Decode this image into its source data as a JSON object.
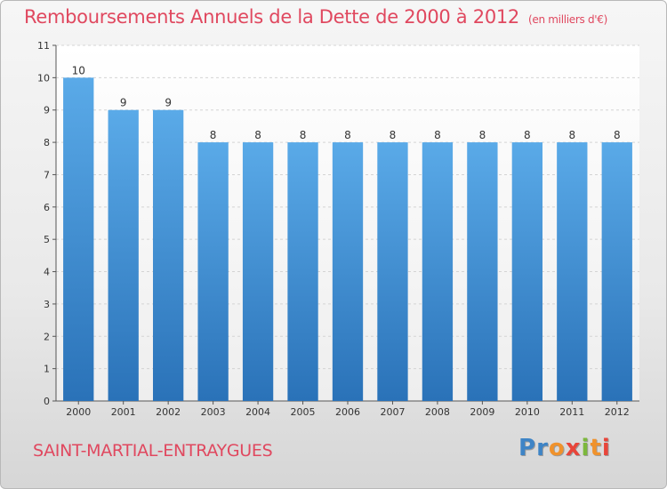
{
  "chart_data": {
    "type": "bar",
    "title": "Remboursements Annuels de la Dette de 2000 à 2012",
    "unit_label": "(en milliers d'€)",
    "categories": [
      "2000",
      "2001",
      "2002",
      "2003",
      "2004",
      "2005",
      "2006",
      "2007",
      "2008",
      "2009",
      "2010",
      "2011",
      "2012"
    ],
    "values": [
      10,
      9,
      9,
      8,
      8,
      8,
      8,
      8,
      8,
      8,
      8,
      8,
      8
    ],
    "data_labels": [
      "10",
      "9",
      "9",
      "8",
      "8",
      "8",
      "8",
      "8",
      "8",
      "8",
      "8",
      "8",
      "8"
    ],
    "ylim": [
      0,
      11
    ],
    "yticks": [
      0,
      1,
      2,
      3,
      4,
      5,
      6,
      7,
      8,
      9,
      10,
      11
    ],
    "xlabel": "",
    "ylabel": "",
    "bar_color_top": "#5aaae8",
    "bar_color_bottom": "#2a72b8"
  },
  "footer": {
    "commune": "SAINT-MARTIAL-ENTRAYGUES",
    "logo_letters": [
      "P",
      "r",
      "o",
      "x",
      "i",
      "t",
      "i"
    ]
  }
}
